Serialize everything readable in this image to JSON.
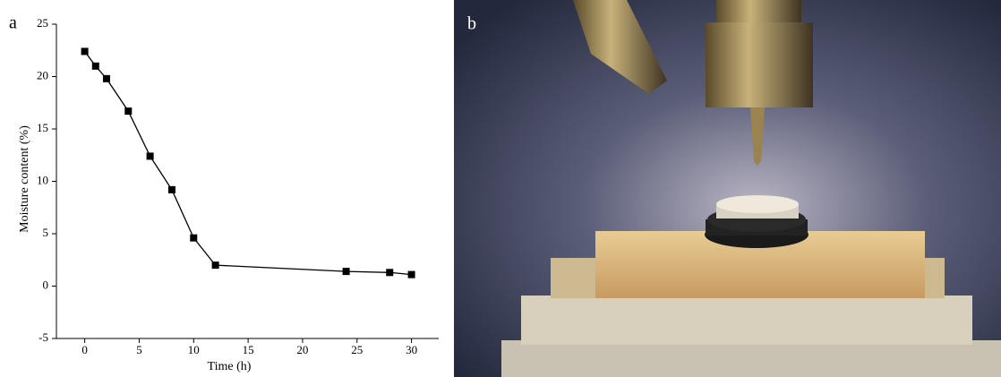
{
  "figure": {
    "panel_labels": [
      "a",
      "b"
    ]
  },
  "chart_data": {
    "type": "line",
    "x_label": "Time (h)",
    "y_label": "Moisture content (%)",
    "x": [
      0,
      1,
      2,
      4,
      6,
      8,
      10,
      12,
      24,
      28,
      30
    ],
    "series": [
      {
        "color": "#000000",
        "values": [
          22.4,
          21.0,
          19.8,
          16.7,
          12.4,
          9.2,
          4.6,
          2.0,
          1.4,
          1.3,
          1.1
        ]
      }
    ],
    "xlim": [
      -2.6,
      32.5
    ],
    "xticks": [
      0,
      5,
      10,
      15,
      20,
      25,
      30
    ],
    "ylim": [
      -5,
      25
    ],
    "yticks": [
      -5,
      0,
      5,
      10,
      15,
      20,
      25
    ]
  }
}
